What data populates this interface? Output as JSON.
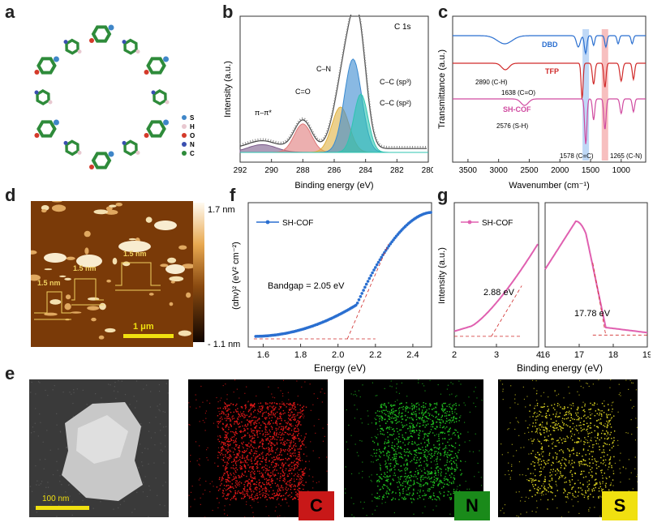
{
  "panels": {
    "a": {
      "label": "a",
      "legend": [
        "S",
        "H",
        "O",
        "N",
        "C"
      ],
      "legend_colors": [
        "#3f86c8",
        "#e8c8d0",
        "#d43a2a",
        "#3a4fb0",
        "#2e8b3a"
      ]
    },
    "b": {
      "label": "b",
      "corner": "C 1s",
      "peaks": [
        "π–π*",
        "C=O",
        "C–N",
        "C–C (sp³)",
        "C–C (sp²)"
      ]
    },
    "c": {
      "label": "c",
      "traces": [
        "DBD",
        "TFP",
        "SH-COF"
      ],
      "notes": [
        "2890 (C-H)",
        "1638 (C=O)",
        "2576 (S-H)",
        "1578 (C=C)",
        "1265 (C-N)"
      ]
    },
    "d": {
      "label": "d",
      "scale_max": "1.7 nm",
      "scale_min": "- 1.1 nm",
      "heights": [
        "1.5 nm",
        "1.5 nm",
        "1.5 nm"
      ],
      "scalebar": "1 μm"
    },
    "e": {
      "label": "e",
      "scalebar": "100 nm",
      "elements": [
        "C",
        "N",
        "S"
      ]
    },
    "f": {
      "label": "f",
      "legend": "SH-COF",
      "note": "Bandgap = 2.05 eV"
    },
    "g": {
      "label": "g",
      "legend": "SH-COF",
      "note_left": "2.88 eV",
      "note_right": "17.78 eV"
    }
  },
  "chart_data": [
    {
      "id": "b",
      "type": "line",
      "title": "",
      "xlabel": "Binding energy (eV)",
      "ylabel": "Intensity (a.u.)",
      "xlim": [
        292,
        280
      ],
      "xticks": [
        "292",
        "290",
        "288",
        "286",
        "284",
        "282",
        "280"
      ],
      "reversed_x": true,
      "series": [
        {
          "name": "π–π*",
          "color": "#7a5a8a",
          "center": 290.6,
          "height": 0.06,
          "width": 0.9
        },
        {
          "name": "C=O",
          "color": "#e07a7a",
          "center": 288.0,
          "height": 0.22,
          "width": 0.55
        },
        {
          "name": "C–N",
          "color": "#e0b040",
          "center": 285.6,
          "height": 0.35,
          "width": 0.55
        },
        {
          "name": "C–C (sp³)",
          "color": "#3a8ad0",
          "center": 284.8,
          "height": 0.72,
          "width": 0.55
        },
        {
          "name": "C–C (sp²)",
          "color": "#2ec4b0",
          "center": 284.3,
          "height": 0.45,
          "width": 0.45
        }
      ]
    },
    {
      "id": "c",
      "type": "line",
      "title": "",
      "xlabel": "Wavenumber (cm⁻¹)",
      "ylabel": "Transmittance (a.u.)",
      "xlim": [
        3750,
        600
      ],
      "xticks": [
        "3500",
        "3000",
        "2500",
        "2000",
        "1500",
        "1000"
      ],
      "reversed_x": true,
      "series": [
        {
          "name": "DBD",
          "color": "#2a6fd0"
        },
        {
          "name": "TFP",
          "color": "#d02a2a"
        },
        {
          "name": "SH-COF",
          "color": "#d04aa0"
        }
      ],
      "bands": [
        1578,
        1265
      ]
    },
    {
      "id": "f",
      "type": "scatter",
      "title": "",
      "xlabel": "Energy (eV)",
      "ylabel": "(αhν)² (eV² cm⁻²)",
      "xlim": [
        1.52,
        2.5
      ],
      "xticks": [
        "1.6",
        "1.8",
        "2.0",
        "2.2",
        "2.4"
      ],
      "series": [
        {
          "name": "SH-COF",
          "color": "#2a6fd0"
        }
      ],
      "bandgap": 2.05
    },
    {
      "id": "g1",
      "type": "line",
      "title": "",
      "xlabel": "Binding energy (eV)",
      "ylabel": "Intensity (a.u.)",
      "xlim": [
        2,
        4
      ],
      "xticks": [
        "2",
        "3",
        "4"
      ],
      "series": [
        {
          "name": "SH-COF",
          "color": "#e060b0"
        }
      ],
      "onset": 2.88
    },
    {
      "id": "g2",
      "type": "line",
      "title": "",
      "xlabel": "",
      "ylabel": "",
      "xlim": [
        16,
        19
      ],
      "xticks": [
        "16",
        "17",
        "18",
        "19"
      ],
      "series": [
        {
          "name": "SH-COF",
          "color": "#e060b0"
        }
      ],
      "cutoff": 17.78
    }
  ]
}
